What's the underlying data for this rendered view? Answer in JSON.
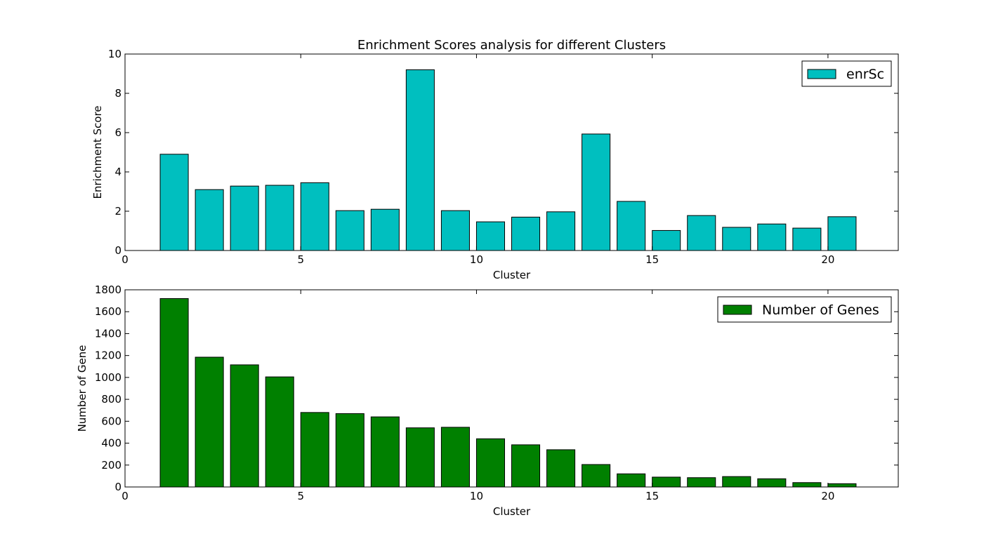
{
  "figure": {
    "background": "#ffffff"
  },
  "chart_data": [
    {
      "type": "bar",
      "title": "Enrichment Scores analysis for different Clusters",
      "xlabel": "Cluster",
      "ylabel": "Enrichment Score",
      "xlim": [
        0,
        22
      ],
      "ylim": [
        0,
        10
      ],
      "xticks": [
        0,
        5,
        10,
        15,
        20
      ],
      "yticks": [
        0,
        2,
        4,
        6,
        8,
        10
      ],
      "grid": false,
      "legend": {
        "position": "top-right"
      },
      "series": [
        {
          "name": "enrSc",
          "color": "#00bfbf",
          "x": [
            1,
            2,
            3,
            4,
            5,
            6,
            7,
            8,
            9,
            10,
            11,
            12,
            13,
            14,
            15,
            16,
            17,
            18,
            19,
            20
          ],
          "values": [
            4.9,
            3.1,
            3.28,
            3.32,
            3.45,
            2.03,
            2.1,
            9.2,
            2.03,
            1.46,
            1.7,
            1.97,
            5.93,
            2.5,
            1.02,
            1.78,
            1.18,
            1.35,
            1.14,
            1.72
          ]
        }
      ]
    },
    {
      "type": "bar",
      "title": "",
      "xlabel": "Cluster",
      "ylabel": "Number of Gene",
      "xlim": [
        0,
        22
      ],
      "ylim": [
        0,
        1800
      ],
      "xticks": [
        0,
        5,
        10,
        15,
        20
      ],
      "yticks": [
        0,
        200,
        400,
        600,
        800,
        1000,
        1200,
        1400,
        1600,
        1800
      ],
      "grid": false,
      "legend": {
        "position": "top-right"
      },
      "series": [
        {
          "name": "Number of Genes",
          "color": "#008000",
          "x": [
            1,
            2,
            3,
            4,
            5,
            6,
            7,
            8,
            9,
            10,
            11,
            12,
            13,
            14,
            15,
            16,
            17,
            18,
            19,
            20
          ],
          "values": [
            1720,
            1185,
            1115,
            1005,
            680,
            670,
            640,
            540,
            545,
            440,
            385,
            340,
            205,
            120,
            90,
            85,
            95,
            75,
            40,
            30
          ]
        }
      ]
    }
  ]
}
